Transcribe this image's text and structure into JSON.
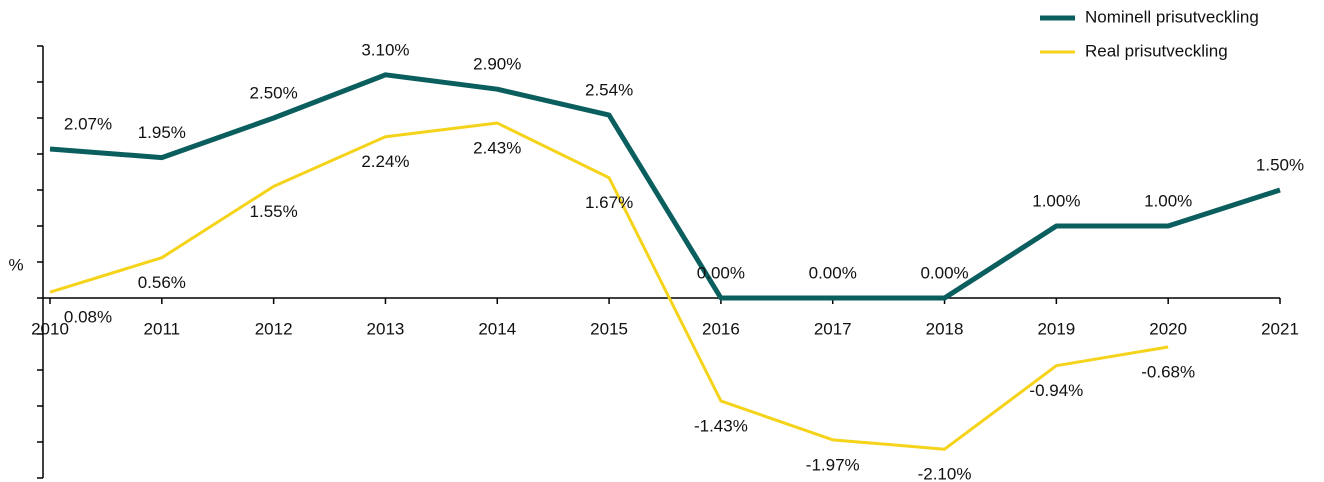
{
  "chart_data": {
    "type": "line",
    "y_label": "%",
    "categories": [
      "2010",
      "2011",
      "2012",
      "2013",
      "2014",
      "2015",
      "2016",
      "2017",
      "2018",
      "2019",
      "2020",
      "2021"
    ],
    "ylim": [
      -2.5,
      3.5
    ],
    "yticks": [
      -2.5,
      -2,
      -1.5,
      -1,
      -0.5,
      0,
      0.5,
      1,
      1.5,
      2,
      2.5,
      3,
      3.5
    ],
    "series": [
      {
        "name": "Nominell prisutveckling",
        "color": "#0b5e5e",
        "values": [
          2.07,
          1.95,
          2.5,
          3.1,
          2.9,
          2.54,
          0,
          0,
          0,
          1,
          1,
          1.5
        ],
        "value_labels": [
          "2.07%",
          "1.95%",
          "2.50%",
          "3.10%",
          "2.90%",
          "2.54%",
          "0.00%",
          "0.00%",
          "0.00%",
          "1.00%",
          "1.00%",
          "1.50%"
        ]
      },
      {
        "name": "Real prisutveckling",
        "color": "#f5d31a",
        "values": [
          0.08,
          0.56,
          1.55,
          2.24,
          2.43,
          1.67,
          -1.43,
          -1.97,
          -2.1,
          -0.94,
          -0.68,
          null
        ],
        "value_labels": [
          "0.08%",
          "0.56%",
          "1.55%",
          "2.24%",
          "2.43%",
          "1.67%",
          "-1.43%",
          "-1.97%",
          "-2.10%",
          "-0.94%",
          "-0.68%",
          null
        ]
      }
    ]
  }
}
